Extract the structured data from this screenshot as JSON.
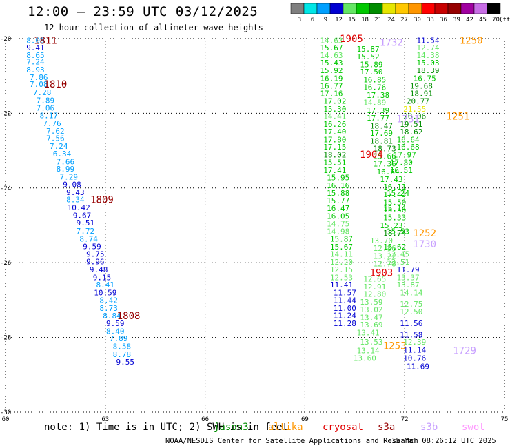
{
  "title": "12:00 – 23:59 UTC 03/12/2025",
  "subtitle": "12 hour collection of altimeter wave heights",
  "footer": {
    "note": "note: 1) Time is in UTC; 2) SWH is in feet",
    "credit": "NOAA/NESDIS Center for Satellite Applications and Research",
    "timestamp": "15 Mar 08:26:12 UTC 2025"
  },
  "satellites": [
    {
      "name": "jason3",
      "color": "#008c00"
    },
    {
      "name": "altika",
      "color": "#ff9600"
    },
    {
      "name": "cryosat",
      "color": "#e00000"
    },
    {
      "name": "s3a",
      "color": "#960000"
    },
    {
      "name": "s3b",
      "color": "#c8a0ff"
    },
    {
      "name": "swot",
      "color": "#ff96ff"
    }
  ],
  "chart_data": {
    "type": "scatter",
    "xlabel": "",
    "ylabel": "",
    "xlim": [
      60,
      75
    ],
    "ylim": [
      -30,
      -20
    ],
    "x_ticks": [
      60,
      63,
      66,
      69,
      72,
      75
    ],
    "y_ticks": [
      -20,
      -22,
      -24,
      -26,
      -28,
      -30
    ],
    "grid": true,
    "color_scale": {
      "unit": "(ft)",
      "bins": [
        {
          "label": "3",
          "color": "#7f7f7f"
        },
        {
          "label": "6",
          "color": "#00e6e6"
        },
        {
          "label": "9",
          "color": "#00a0ff"
        },
        {
          "label": "12",
          "color": "#0000d2"
        },
        {
          "label": "15",
          "color": "#64e664"
        },
        {
          "label": "18",
          "color": "#00c800"
        },
        {
          "label": "21",
          "color": "#008c00"
        },
        {
          "label": "24",
          "color": "#e6e600"
        },
        {
          "label": "27",
          "color": "#ffc800"
        },
        {
          "label": "30",
          "color": "#ff9600"
        },
        {
          "label": "33",
          "color": "#ff0000"
        },
        {
          "label": "36",
          "color": "#c80000"
        },
        {
          "label": "39",
          "color": "#960000"
        },
        {
          "label": "42",
          "color": "#a000a0"
        },
        {
          "label": "45",
          "color": "#c86ee6"
        },
        {
          "label": "70",
          "color": "#000000"
        }
      ]
    },
    "points": [
      [
        60.9,
        -20.05,
        "8.00"
      ],
      [
        60.9,
        -20.24,
        "9.41"
      ],
      [
        60.9,
        -20.44,
        "8.65"
      ],
      [
        60.9,
        -20.62,
        "7.24"
      ],
      [
        60.9,
        -20.83,
        "8.93"
      ],
      [
        61.0,
        -21.03,
        "7.86"
      ],
      [
        61.0,
        -21.22,
        "7.08"
      ],
      [
        61.1,
        -21.44,
        "7.28"
      ],
      [
        61.2,
        -21.65,
        "7.89"
      ],
      [
        61.2,
        -21.85,
        "7.06"
      ],
      [
        61.3,
        -22.06,
        "8.17"
      ],
      [
        61.4,
        -22.27,
        "7.76"
      ],
      [
        61.5,
        -22.47,
        "7.62"
      ],
      [
        61.5,
        -22.67,
        "7.56"
      ],
      [
        61.6,
        -22.88,
        "7.24"
      ],
      [
        61.7,
        -23.08,
        "6.34"
      ],
      [
        61.8,
        -23.29,
        "7.66"
      ],
      [
        61.8,
        -23.49,
        "8.99"
      ],
      [
        61.9,
        -23.7,
        "7.29"
      ],
      [
        62.0,
        -23.9,
        "9.08"
      ],
      [
        62.1,
        -24.11,
        "9.43"
      ],
      [
        62.1,
        -24.31,
        "8.34"
      ],
      [
        62.2,
        -24.52,
        "10.42"
      ],
      [
        62.3,
        -24.73,
        "9.67"
      ],
      [
        62.4,
        -24.93,
        "9.51"
      ],
      [
        62.4,
        -25.15,
        "7.72"
      ],
      [
        62.5,
        -25.36,
        "8.74"
      ],
      [
        62.6,
        -25.56,
        "9.59"
      ],
      [
        62.7,
        -25.77,
        "9.75"
      ],
      [
        62.7,
        -25.97,
        "9.96"
      ],
      [
        62.8,
        -26.18,
        "9.48"
      ],
      [
        62.9,
        -26.39,
        "9.15"
      ],
      [
        63.0,
        -26.59,
        "8.41"
      ],
      [
        63.0,
        -26.8,
        "10.59"
      ],
      [
        63.1,
        -27.0,
        "8.42"
      ],
      [
        63.1,
        -27.21,
        "8.73"
      ],
      [
        63.2,
        -27.42,
        "8.84"
      ],
      [
        63.3,
        -27.62,
        "9.59"
      ],
      [
        63.3,
        -27.83,
        "8.40"
      ],
      [
        63.4,
        -28.03,
        "7.89"
      ],
      [
        63.5,
        -28.24,
        "8.58"
      ],
      [
        63.5,
        -28.45,
        "8.78"
      ],
      [
        63.6,
        -28.65,
        "9.55"
      ],
      [
        69.8,
        -20.05,
        "14.63"
      ],
      [
        69.8,
        -20.24,
        "15.67"
      ],
      [
        69.8,
        -20.44,
        "14.63"
      ],
      [
        69.8,
        -20.65,
        "15.43"
      ],
      [
        69.8,
        -20.85,
        "15.92"
      ],
      [
        69.8,
        -21.06,
        "16.19"
      ],
      [
        69.8,
        -21.26,
        "16.77"
      ],
      [
        69.8,
        -21.47,
        "17.16"
      ],
      [
        69.9,
        -21.67,
        "17.02"
      ],
      [
        69.9,
        -21.88,
        "15.30"
      ],
      [
        69.9,
        -22.08,
        "14.41"
      ],
      [
        69.9,
        -22.29,
        "16.26"
      ],
      [
        69.9,
        -22.49,
        "17.40"
      ],
      [
        69.9,
        -22.7,
        "17.80"
      ],
      [
        69.9,
        -22.9,
        "17.15"
      ],
      [
        69.9,
        -23.11,
        "18.02"
      ],
      [
        69.9,
        -23.31,
        "15.51"
      ],
      [
        69.9,
        -23.52,
        "17.41"
      ],
      [
        70.0,
        -23.72,
        "15.95"
      ],
      [
        70.0,
        -23.93,
        "16.16"
      ],
      [
        70.0,
        -24.13,
        "15.88"
      ],
      [
        70.0,
        -24.34,
        "15.77"
      ],
      [
        70.0,
        -24.54,
        "16.47"
      ],
      [
        70.0,
        -24.75,
        "16.05"
      ],
      [
        70.0,
        -24.95,
        "14.75"
      ],
      [
        70.0,
        -25.16,
        "14.98"
      ],
      [
        70.1,
        -25.36,
        "15.87"
      ],
      [
        70.1,
        -25.57,
        "15.67"
      ],
      [
        70.1,
        -25.77,
        "14.11"
      ],
      [
        70.1,
        -25.98,
        "12.20"
      ],
      [
        70.1,
        -26.18,
        "12.15"
      ],
      [
        70.1,
        -26.39,
        "12.53"
      ],
      [
        70.1,
        -26.59,
        "11.41"
      ],
      [
        70.2,
        -26.8,
        "11.57"
      ],
      [
        70.2,
        -27.0,
        "11.44"
      ],
      [
        70.2,
        -27.21,
        "11.00"
      ],
      [
        70.2,
        -27.41,
        "11.24"
      ],
      [
        70.2,
        -27.62,
        "11.28"
      ],
      [
        70.9,
        -20.28,
        "15.87"
      ],
      [
        70.9,
        -20.48,
        "15.52"
      ],
      [
        71.0,
        -20.69,
        "15.89"
      ],
      [
        71.0,
        -20.89,
        "17.50"
      ],
      [
        71.1,
        -21.1,
        "16.85"
      ],
      [
        71.1,
        -21.3,
        "16.76"
      ],
      [
        71.2,
        -21.51,
        "17.38"
      ],
      [
        71.1,
        -21.71,
        "14.89"
      ],
      [
        71.2,
        -21.92,
        "17.39"
      ],
      [
        71.2,
        -22.12,
        "17.77"
      ],
      [
        71.3,
        -22.33,
        "18.47"
      ],
      [
        71.3,
        -22.53,
        "17.69"
      ],
      [
        71.3,
        -22.74,
        "18.81"
      ],
      [
        71.4,
        -22.94,
        "18.73"
      ],
      [
        71.4,
        -23.15,
        "15.66"
      ],
      [
        71.4,
        -23.35,
        "17.36"
      ],
      [
        71.5,
        -23.56,
        "16.84"
      ],
      [
        71.6,
        -23.76,
        "17.43"
      ],
      [
        71.7,
        -23.97,
        "16.11"
      ],
      [
        71.7,
        -24.17,
        "17.43"
      ],
      [
        71.7,
        -24.38,
        "15.50"
      ],
      [
        71.7,
        -24.58,
        "15.56"
      ],
      [
        71.7,
        -24.79,
        "15.33"
      ],
      [
        71.6,
        -25.0,
        "15.23"
      ],
      [
        71.7,
        -25.2,
        "18.74"
      ],
      [
        71.3,
        -25.41,
        "13.70"
      ],
      [
        71.4,
        -25.61,
        "12.86"
      ],
      [
        71.4,
        -25.82,
        "13.22"
      ],
      [
        71.4,
        -26.02,
        "12.78"
      ],
      [
        71.1,
        -26.43,
        "12.65"
      ],
      [
        71.1,
        -26.64,
        "12.91"
      ],
      [
        71.1,
        -26.84,
        "12.80"
      ],
      [
        71.0,
        -27.05,
        "13.59"
      ],
      [
        71.0,
        -27.25,
        "13.02"
      ],
      [
        71.0,
        -27.46,
        "13.47"
      ],
      [
        71.0,
        -27.66,
        "13.69"
      ],
      [
        70.9,
        -27.87,
        "13.41"
      ],
      [
        71.0,
        -28.12,
        "13.53"
      ],
      [
        70.9,
        -28.35,
        "13.14"
      ],
      [
        70.8,
        -28.55,
        "13.60"
      ],
      [
        72.7,
        -20.05,
        "11.54"
      ],
      [
        72.7,
        -20.24,
        "12.74"
      ],
      [
        72.7,
        -20.44,
        "14.38"
      ],
      [
        72.7,
        -20.65,
        "15.03"
      ],
      [
        72.7,
        -20.85,
        "18.39"
      ],
      [
        72.6,
        -21.06,
        "16.75"
      ],
      [
        72.5,
        -21.26,
        "19.68"
      ],
      [
        72.5,
        -21.47,
        "18.91"
      ],
      [
        72.4,
        -21.67,
        "20.77"
      ],
      [
        72.3,
        -21.88,
        "21.55"
      ],
      [
        72.3,
        -22.08,
        "20.06"
      ],
      [
        72.2,
        -22.29,
        "19.51"
      ],
      [
        72.2,
        -22.49,
        "18.62"
      ],
      [
        72.1,
        -22.7,
        "16.64"
      ],
      [
        72.1,
        -22.9,
        "16.68"
      ],
      [
        72.0,
        -23.11,
        "17.97"
      ],
      [
        71.9,
        -23.31,
        "17.80"
      ],
      [
        71.9,
        -23.52,
        "16.51"
      ],
      [
        71.8,
        -24.13,
        "15.24"
      ],
      [
        71.7,
        -24.54,
        "15.14"
      ],
      [
        71.8,
        -25.16,
        "15.53"
      ],
      [
        71.7,
        -25.57,
        "15.62"
      ],
      [
        71.8,
        -25.77,
        "12.45"
      ],
      [
        71.8,
        -25.98,
        "13.51"
      ],
      [
        72.1,
        -26.18,
        "11.79"
      ],
      [
        72.1,
        -26.39,
        "13.37"
      ],
      [
        72.1,
        -26.59,
        "13.87"
      ],
      [
        72.2,
        -26.8,
        "14.14"
      ],
      [
        72.2,
        -27.1,
        "12.75"
      ],
      [
        72.2,
        -27.31,
        "12.50"
      ],
      [
        72.2,
        -27.62,
        "11.56"
      ],
      [
        72.2,
        -27.92,
        "11.58"
      ],
      [
        72.3,
        -28.12,
        "12.39"
      ],
      [
        72.3,
        -28.33,
        "11.14"
      ],
      [
        72.3,
        -28.55,
        "10.76"
      ],
      [
        72.4,
        -28.77,
        "11.69"
      ]
    ],
    "annotations": [
      {
        "text": "1811",
        "x": 61.2,
        "y": -20.05,
        "color": "#960000"
      },
      {
        "text": "1810",
        "x": 61.5,
        "y": -21.22,
        "color": "#960000"
      },
      {
        "text": "1809",
        "x": 62.9,
        "y": -24.31,
        "color": "#960000"
      },
      {
        "text": "1808",
        "x": 63.7,
        "y": -27.42,
        "color": "#960000"
      },
      {
        "text": "1905",
        "x": 70.4,
        "y": -20.0,
        "color": "#e00000"
      },
      {
        "text": "1904",
        "x": 71.0,
        "y": -23.1,
        "color": "#e00000"
      },
      {
        "text": "1903",
        "x": 71.3,
        "y": -26.26,
        "color": "#e00000"
      },
      {
        "text": "1732",
        "x": 71.6,
        "y": -20.1,
        "color": "#c8a0ff"
      },
      {
        "text": "1731",
        "x": 72.1,
        "y": -22.15,
        "color": "#c8a0ff"
      },
      {
        "text": "1730",
        "x": 72.6,
        "y": -25.5,
        "color": "#c8a0ff"
      },
      {
        "text": "1729",
        "x": 73.8,
        "y": -28.35,
        "color": "#c8a0ff"
      },
      {
        "text": "1250",
        "x": 74.0,
        "y": -20.05,
        "color": "#ff9600"
      },
      {
        "text": "1251",
        "x": 73.6,
        "y": -22.08,
        "color": "#ff9600"
      },
      {
        "text": "1252",
        "x": 72.6,
        "y": -25.2,
        "color": "#ff9600"
      },
      {
        "text": "1253",
        "x": 71.7,
        "y": -28.22,
        "color": "#ff9600"
      }
    ]
  }
}
